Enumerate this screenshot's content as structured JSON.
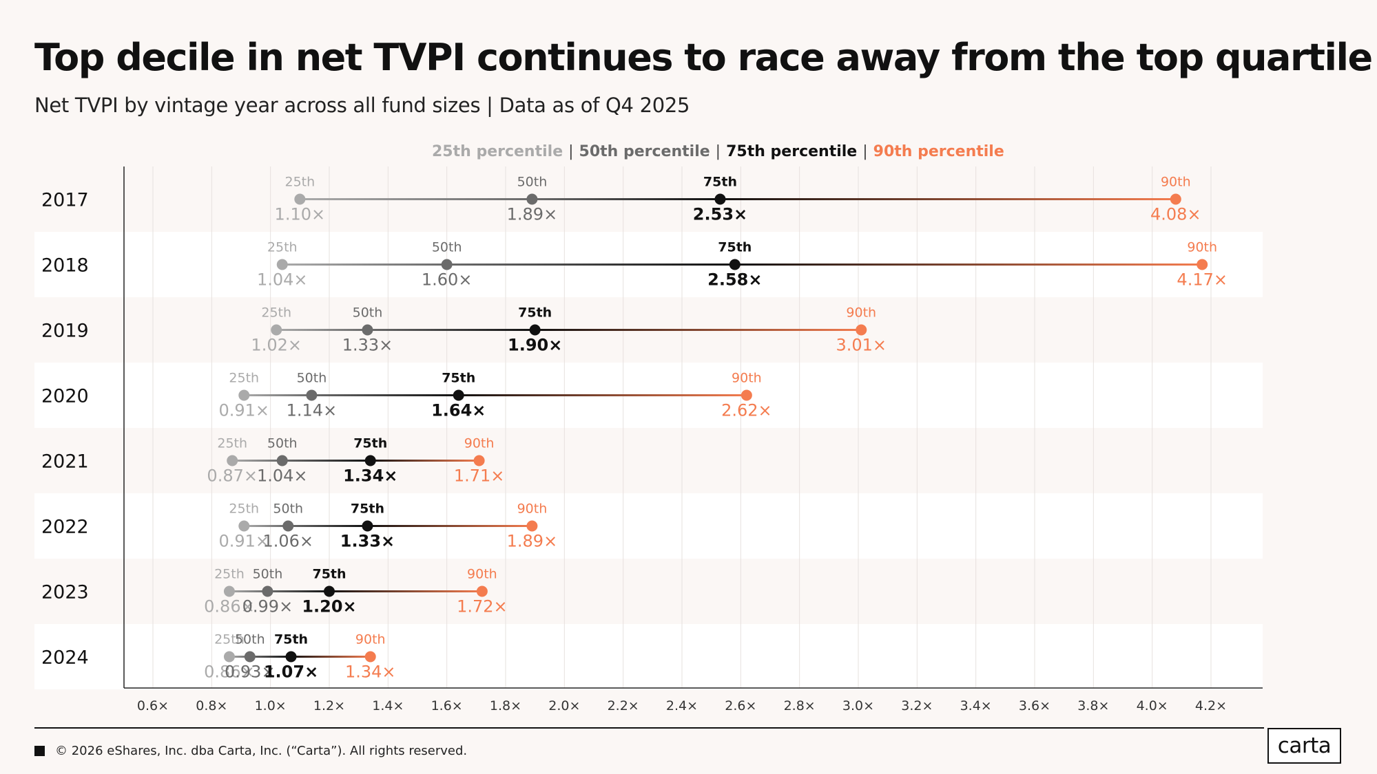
{
  "header": {
    "title": "Top decile in net TVPI continues to race away from the top quartile",
    "subtitle": "Net TVPI by vintage year across all fund sizes | Data as of Q4 2025"
  },
  "legend": {
    "items": [
      {
        "label": "25th percentile",
        "color": "#aaaaaa"
      },
      {
        "label": "50th percentile",
        "color": "#6b6b6b"
      },
      {
        "label": "75th percentile",
        "color": "#111111"
      },
      {
        "label": "90th percentile",
        "color": "#f47c4f"
      }
    ],
    "separator": "|"
  },
  "colors": {
    "p25": "#aaaaaa",
    "p50": "#6b6b6b",
    "p75": "#111111",
    "p90": "#f47c4f",
    "band": "#ffffff",
    "background": "#fbf7f5"
  },
  "chart_data": {
    "type": "dot-range",
    "xlim": [
      0.5,
      4.3
    ],
    "x_ticks": [
      0.6,
      0.8,
      1.0,
      1.2,
      1.4,
      1.6,
      1.8,
      2.0,
      2.2,
      2.4,
      2.6,
      2.8,
      3.0,
      3.2,
      3.4,
      3.6,
      3.8,
      4.0,
      4.2
    ],
    "x_tick_suffix": "x",
    "grid": true,
    "percentile_labels": [
      "25th",
      "50th",
      "75th",
      "90th"
    ],
    "categories": [
      "2017",
      "2018",
      "2019",
      "2020",
      "2021",
      "2022",
      "2023",
      "2024"
    ],
    "series": [
      {
        "name": "25th percentile",
        "values": [
          1.1,
          1.04,
          1.02,
          0.91,
          0.87,
          0.91,
          0.86,
          0.86
        ]
      },
      {
        "name": "50th percentile",
        "values": [
          1.89,
          1.6,
          1.33,
          1.14,
          1.04,
          1.06,
          0.99,
          0.93
        ]
      },
      {
        "name": "75th percentile",
        "values": [
          2.53,
          2.58,
          1.9,
          1.64,
          1.34,
          1.33,
          1.2,
          1.07
        ]
      },
      {
        "name": "90th percentile",
        "values": [
          4.08,
          4.17,
          3.01,
          2.62,
          1.71,
          1.89,
          1.72,
          1.34
        ]
      }
    ]
  },
  "footer": {
    "copyright": "© 2026 eShares, Inc. dba Carta, Inc. (“Carta”). All rights reserved.",
    "logo_text": "carta"
  }
}
